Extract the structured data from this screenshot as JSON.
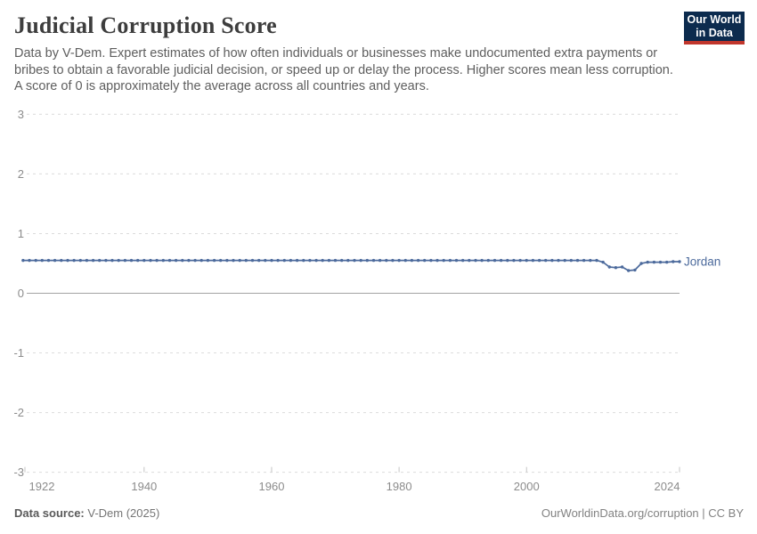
{
  "header": {
    "title": "Judicial Corruption Score",
    "subtitle": "Data by V-Dem. Expert estimates of how often individuals or businesses make undocumented extra payments or bribes to obtain a favorable judicial decision, or speed up or delay the process. Higher scores mean less corruption. A score of 0 is approximately the average across all countries and years.",
    "logo": {
      "line1": "Our World",
      "line2": "in Data",
      "bg_color": "#0c2b4e",
      "accent_color": "#c0362c"
    }
  },
  "chart_data": {
    "type": "line",
    "title": "Judicial Corruption Score",
    "xlabel": "",
    "ylabel": "",
    "xlim": [
      1921,
      2024
    ],
    "ylim": [
      -3,
      3
    ],
    "x_ticks": [
      1922,
      1940,
      1960,
      1980,
      2000,
      2024
    ],
    "y_ticks": [
      3,
      2,
      1,
      0,
      -1,
      -2,
      -3
    ],
    "grid": "horizontal-dashed",
    "legend_position": "end-of-line-label",
    "series": [
      {
        "name": "Jordan",
        "color": "#4c6a9c",
        "x_start": 1921,
        "x_step": 1,
        "values": [
          0.55,
          0.55,
          0.55,
          0.55,
          0.55,
          0.55,
          0.55,
          0.55,
          0.55,
          0.55,
          0.55,
          0.55,
          0.55,
          0.55,
          0.55,
          0.55,
          0.55,
          0.55,
          0.55,
          0.55,
          0.55,
          0.55,
          0.55,
          0.55,
          0.55,
          0.55,
          0.55,
          0.55,
          0.55,
          0.55,
          0.55,
          0.55,
          0.55,
          0.55,
          0.55,
          0.55,
          0.55,
          0.55,
          0.55,
          0.55,
          0.55,
          0.55,
          0.55,
          0.55,
          0.55,
          0.55,
          0.55,
          0.55,
          0.55,
          0.55,
          0.55,
          0.55,
          0.55,
          0.55,
          0.55,
          0.55,
          0.55,
          0.55,
          0.55,
          0.55,
          0.55,
          0.55,
          0.55,
          0.55,
          0.55,
          0.55,
          0.55,
          0.55,
          0.55,
          0.55,
          0.55,
          0.55,
          0.55,
          0.55,
          0.55,
          0.55,
          0.55,
          0.55,
          0.55,
          0.55,
          0.55,
          0.55,
          0.55,
          0.55,
          0.55,
          0.55,
          0.55,
          0.55,
          0.55,
          0.55,
          0.55,
          0.52,
          0.44,
          0.43,
          0.44,
          0.38,
          0.39,
          0.5,
          0.52,
          0.52,
          0.52,
          0.52,
          0.53,
          0.53
        ]
      }
    ]
  },
  "footer": {
    "source_label": "Data source:",
    "source_value": "V-Dem (2025)",
    "attribution": "OurWorldinData.org/corruption | CC BY"
  },
  "colors": {
    "accent": "#4c6a9c",
    "grid_line": "#dcdcdc",
    "zero_line": "#a3a3a3",
    "tick_mark": "#c4c4c4",
    "axis_text": "#8c8c8c"
  }
}
